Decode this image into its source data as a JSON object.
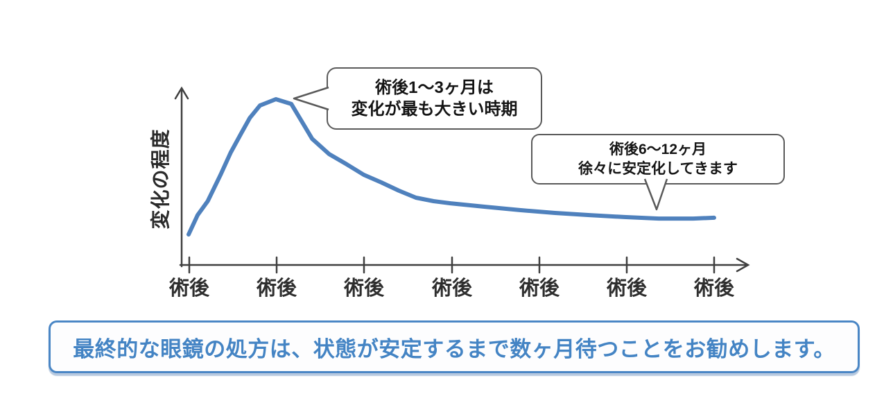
{
  "chart_data": {
    "type": "line",
    "title": "",
    "xlabel": "",
    "ylabel": "変化の程度",
    "categories": [
      "術後",
      "術後",
      "術後",
      "術後",
      "術後",
      "術後",
      "術後"
    ],
    "series": [
      {
        "name": "変化の程度",
        "points": [
          [
            0.013,
            0.184
          ],
          [
            0.03,
            0.301
          ],
          [
            0.049,
            0.385
          ],
          [
            0.073,
            0.544
          ],
          [
            0.092,
            0.678
          ],
          [
            0.112,
            0.795
          ],
          [
            0.128,
            0.887
          ],
          [
            0.147,
            0.962
          ],
          [
            0.177,
            1.0
          ],
          [
            0.206,
            0.971
          ],
          [
            0.245,
            0.761
          ],
          [
            0.277,
            0.669
          ],
          [
            0.31,
            0.607
          ],
          [
            0.342,
            0.544
          ],
          [
            0.375,
            0.498
          ],
          [
            0.408,
            0.448
          ],
          [
            0.44,
            0.406
          ],
          [
            0.473,
            0.385
          ],
          [
            0.505,
            0.372
          ],
          [
            0.57,
            0.351
          ],
          [
            0.635,
            0.331
          ],
          [
            0.701,
            0.314
          ],
          [
            0.766,
            0.301
          ],
          [
            0.831,
            0.289
          ],
          [
            0.896,
            0.28
          ],
          [
            0.961,
            0.28
          ],
          [
            1.0,
            0.285
          ]
        ]
      }
    ],
    "values_at_ticks": [
      0.18,
      1.0,
      0.54,
      0.37,
      0.32,
      0.29,
      0.28
    ],
    "ylim": [
      0,
      1.15
    ],
    "grid": false,
    "legend": "none",
    "line_color": "#4f81bd",
    "axis_color": "#3f3f3f"
  },
  "callouts": {
    "peak": {
      "line1": "術後1〜3ヶ月は",
      "line2": "変化が最も大きい時期"
    },
    "stable": {
      "line1": "術後6〜12ヶ月",
      "line2": "徐々に安定化してきます"
    }
  },
  "banner": {
    "text": "最終的な眼鏡の処方は、状態が安定するまで数ヶ月待つことをお勧めします。",
    "text_color": "#4484c4",
    "border_color": "#4a86c5"
  }
}
